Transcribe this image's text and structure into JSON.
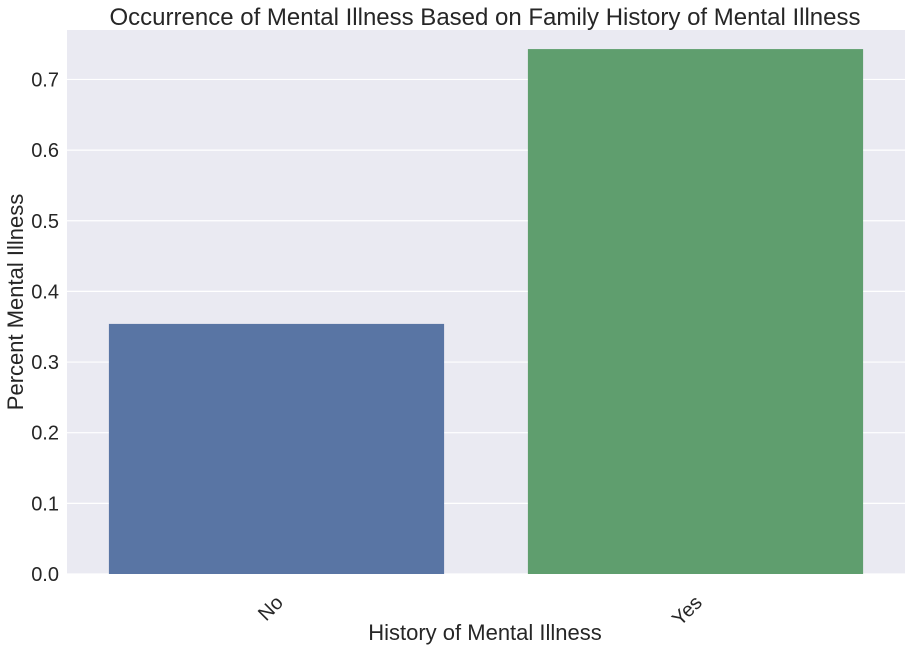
{
  "chart_data": {
    "type": "bar",
    "title": "Occurrence of Mental Illness Based on Family History of Mental Illness",
    "xlabel": "History of Mental Illness",
    "ylabel": "Percent Mental Illness",
    "categories": [
      "No",
      "Yes"
    ],
    "values": [
      0.354,
      0.743
    ],
    "ylim": [
      0,
      0.77
    ],
    "yticks": [
      "0.0",
      "0.1",
      "0.2",
      "0.3",
      "0.4",
      "0.5",
      "0.6",
      "0.7"
    ],
    "grid": true,
    "legend": "none",
    "colors": {
      "plot_background": "#EAEAF2",
      "gridline": "#FFFFFF",
      "text": "#262626",
      "bars": [
        "#5975A4",
        "#5F9E6E"
      ]
    }
  }
}
